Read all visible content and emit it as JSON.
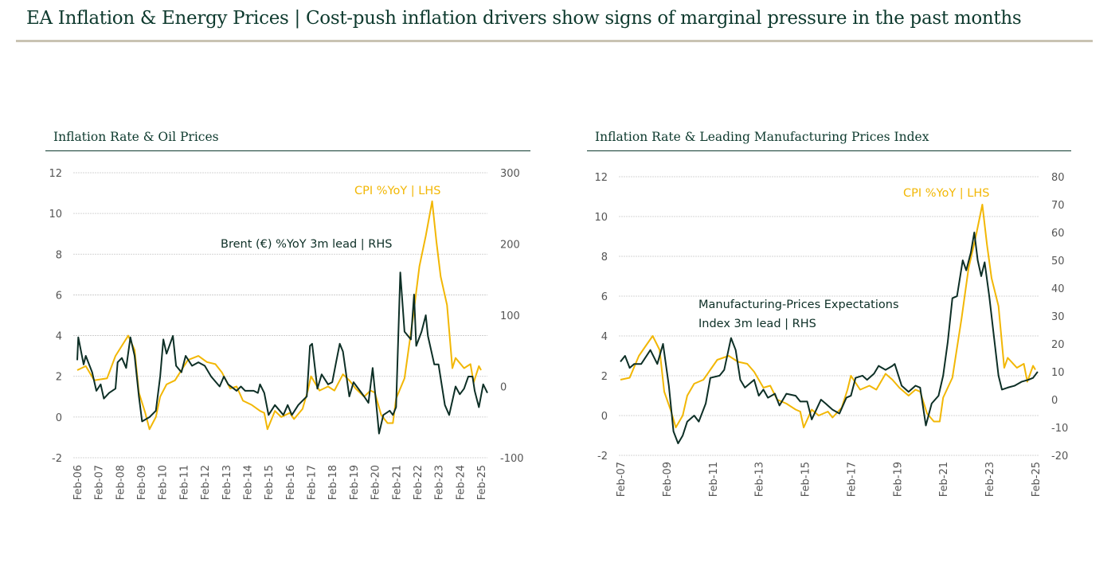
{
  "page": {
    "title": "EA Inflation & Energy Prices | Cost-push inflation drivers show signs of marginal pressure in the past months"
  },
  "colors": {
    "cpi": "#f2b705",
    "secondary": "#0d2f26",
    "grid": "#c8c8c8",
    "tick": "#555555"
  },
  "chart_data": [
    {
      "type": "line",
      "title": "Inflation Rate & Oil Prices",
      "x_tick_labels": [
        "Feb-06",
        "Feb-07",
        "Feb-08",
        "Feb-09",
        "Feb-10",
        "Feb-11",
        "Feb-12",
        "Feb-13",
        "Feb-14",
        "Feb-15",
        "Feb-16",
        "Feb-17",
        "Feb-18",
        "Feb-19",
        "Feb-20",
        "Feb-21",
        "Feb-22",
        "Feb-23",
        "Feb-24",
        "Feb-25"
      ],
      "x_tick_years": [
        2006.1,
        2007.1,
        2008.1,
        2009.1,
        2010.1,
        2011.1,
        2012.1,
        2013.1,
        2014.1,
        2015.1,
        2016.1,
        2017.1,
        2018.1,
        2019.1,
        2020.1,
        2021.1,
        2022.1,
        2023.1,
        2024.1,
        2025.1
      ],
      "y_left": {
        "range": [
          -2,
          12
        ],
        "ticks": [
          "12",
          "10",
          "8",
          "6",
          "4",
          "2",
          "0",
          "-2"
        ],
        "tick_values": [
          12,
          10,
          8,
          6,
          4,
          2,
          0,
          -2
        ]
      },
      "y_right": {
        "range": [
          -100,
          300
        ],
        "ticks": [
          "300",
          "200",
          "100",
          "0",
          "-100"
        ],
        "tick_values": [
          300,
          200,
          100,
          0,
          -100
        ]
      },
      "grid": true,
      "annotations": [
        "CPI %YoY | LHS",
        "Brent (€) %YoY 3m lead | RHS"
      ],
      "series": [
        {
          "name": "CPI %YoY | LHS",
          "axis": "left",
          "x": [
            2006.1,
            2006.5,
            2006.9,
            2007.5,
            2007.9,
            2008.2,
            2008.5,
            2008.8,
            2009.0,
            2009.3,
            2009.5,
            2009.8,
            2010.0,
            2010.3,
            2010.7,
            2011.0,
            2011.3,
            2011.8,
            2012.2,
            2012.6,
            2012.9,
            2013.3,
            2013.6,
            2013.9,
            2014.3,
            2014.7,
            2014.9,
            2015.05,
            2015.4,
            2015.7,
            2016.1,
            2016.3,
            2016.7,
            2016.95,
            2017.1,
            2017.5,
            2017.9,
            2018.2,
            2018.6,
            2018.9,
            2019.2,
            2019.6,
            2019.9,
            2020.1,
            2020.4,
            2020.7,
            2020.95,
            2021.1,
            2021.5,
            2021.9,
            2022.2,
            2022.5,
            2022.8,
            2023.0,
            2023.2,
            2023.5,
            2023.75,
            2023.9,
            2024.3,
            2024.6,
            2024.75,
            2025.0,
            2025.1
          ],
          "y": [
            2.3,
            2.5,
            1.8,
            1.9,
            3.0,
            3.5,
            4.0,
            3.3,
            1.2,
            0.2,
            -0.6,
            0.0,
            1.0,
            1.6,
            1.8,
            2.3,
            2.8,
            3.0,
            2.7,
            2.6,
            2.2,
            1.4,
            1.5,
            0.8,
            0.6,
            0.3,
            0.2,
            -0.6,
            0.3,
            0.0,
            0.2,
            -0.1,
            0.4,
            1.3,
            2.0,
            1.3,
            1.5,
            1.3,
            2.1,
            1.8,
            1.4,
            1.0,
            1.3,
            1.2,
            0.1,
            -0.3,
            -0.3,
            0.9,
            1.9,
            4.9,
            7.4,
            8.9,
            10.6,
            8.6,
            6.9,
            5.5,
            2.4,
            2.9,
            2.4,
            2.6,
            1.7,
            2.5,
            2.3
          ]
        },
        {
          "name": "Brent (€) %YoY 3m lead | RHS",
          "axis": "right",
          "x": [
            2006.1,
            2006.15,
            2006.4,
            2006.5,
            2006.8,
            2007.0,
            2007.2,
            2007.35,
            2007.6,
            2007.9,
            2008.0,
            2008.2,
            2008.4,
            2008.6,
            2008.8,
            2009.0,
            2009.15,
            2009.5,
            2009.8,
            2010.0,
            2010.15,
            2010.3,
            2010.6,
            2010.75,
            2011.0,
            2011.2,
            2011.5,
            2011.8,
            2012.1,
            2012.4,
            2012.8,
            2013.0,
            2013.2,
            2013.6,
            2013.8,
            2014.0,
            2014.4,
            2014.6,
            2014.7,
            2014.9,
            2015.1,
            2015.4,
            2015.8,
            2016.0,
            2016.2,
            2016.5,
            2016.9,
            2017.05,
            2017.15,
            2017.4,
            2017.6,
            2017.9,
            2018.1,
            2018.3,
            2018.45,
            2018.6,
            2018.9,
            2019.1,
            2019.4,
            2019.6,
            2019.8,
            2020.0,
            2020.2,
            2020.3,
            2020.5,
            2020.8,
            2020.95,
            2021.1,
            2021.3,
            2021.5,
            2021.8,
            2021.95,
            2022.05,
            2022.3,
            2022.5,
            2022.6,
            2022.9,
            2023.1,
            2023.4,
            2023.6,
            2023.9,
            2024.1,
            2024.3,
            2024.5,
            2024.7,
            2024.8,
            2025.0,
            2025.2,
            2025.4
          ],
          "y": [
            37,
            69,
            31,
            43,
            20,
            -6,
            3,
            -17,
            -9,
            -3,
            34,
            40,
            26,
            69,
            43,
            -14,
            -49,
            -43,
            -34,
            14,
            66,
            46,
            71,
            29,
            20,
            43,
            29,
            34,
            29,
            14,
            0,
            14,
            3,
            -6,
            0,
            -6,
            -6,
            -9,
            3,
            -9,
            -40,
            -26,
            -40,
            -26,
            -40,
            -26,
            -14,
            57,
            60,
            -3,
            17,
            3,
            6,
            37,
            60,
            49,
            -14,
            6,
            -6,
            -14,
            -23,
            26,
            -34,
            -66,
            -40,
            -34,
            -40,
            -29,
            160,
            77,
            66,
            129,
            57,
            77,
            100,
            71,
            31,
            31,
            -26,
            -40,
            0,
            -11,
            -3,
            14,
            14,
            -6,
            -29,
            3,
            -9
          ]
        }
      ]
    },
    {
      "type": "line",
      "title": "Inflation Rate & Leading Manufacturing Prices Index",
      "x_tick_labels": [
        "Feb-07",
        "Feb-09",
        "Feb-11",
        "Feb-13",
        "Feb-15",
        "Feb-17",
        "Feb-19",
        "Feb-21",
        "Feb-23",
        "Feb-25"
      ],
      "x_tick_years": [
        2007.1,
        2009.1,
        2011.1,
        2013.1,
        2015.1,
        2017.1,
        2019.1,
        2021.1,
        2023.1,
        2025.1
      ],
      "y_left": {
        "range": [
          -2,
          12
        ],
        "ticks": [
          "12",
          "10",
          "8",
          "6",
          "4",
          "2",
          "0",
          "-2"
        ],
        "tick_values": [
          12,
          10,
          8,
          6,
          4,
          2,
          0,
          -2
        ]
      },
      "y_right": {
        "range": [
          -20,
          80
        ],
        "ticks": [
          "80",
          "70",
          "60",
          "50",
          "40",
          "30",
          "20",
          "10",
          "0",
          "-10",
          "-20"
        ],
        "tick_values": [
          80,
          70,
          60,
          50,
          40,
          30,
          20,
          10,
          0,
          -10,
          -20
        ]
      },
      "grid": true,
      "annotations": [
        "CPI %YoY | LHS",
        "Manufacturing-Prices Expectations",
        "Index 3m lead | RHS"
      ],
      "series": [
        {
          "name": "CPI %YoY | LHS",
          "axis": "left",
          "x": [
            2007.1,
            2007.5,
            2007.9,
            2008.2,
            2008.5,
            2008.8,
            2009.0,
            2009.3,
            2009.5,
            2009.8,
            2010.0,
            2010.3,
            2010.7,
            2011.0,
            2011.3,
            2011.8,
            2012.2,
            2012.6,
            2012.9,
            2013.3,
            2013.6,
            2013.9,
            2014.3,
            2014.7,
            2014.9,
            2015.05,
            2015.4,
            2015.7,
            2016.1,
            2016.3,
            2016.7,
            2016.95,
            2017.1,
            2017.5,
            2017.9,
            2018.2,
            2018.6,
            2018.9,
            2019.2,
            2019.6,
            2019.9,
            2020.1,
            2020.4,
            2020.7,
            2020.95,
            2021.1,
            2021.5,
            2021.9,
            2022.2,
            2022.5,
            2022.8,
            2023.0,
            2023.2,
            2023.5,
            2023.75,
            2023.9,
            2024.3,
            2024.6,
            2024.75,
            2025.0,
            2025.1
          ],
          "y": [
            1.8,
            1.9,
            3.0,
            3.5,
            4.0,
            3.3,
            1.2,
            0.2,
            -0.6,
            0.0,
            1.0,
            1.6,
            1.8,
            2.3,
            2.8,
            3.0,
            2.7,
            2.6,
            2.2,
            1.4,
            1.5,
            0.8,
            0.6,
            0.3,
            0.2,
            -0.6,
            0.3,
            0.0,
            0.2,
            -0.1,
            0.4,
            1.3,
            2.0,
            1.3,
            1.5,
            1.3,
            2.1,
            1.8,
            1.4,
            1.0,
            1.3,
            1.2,
            0.1,
            -0.3,
            -0.3,
            0.9,
            1.9,
            4.9,
            7.4,
            8.9,
            10.6,
            8.6,
            6.9,
            5.5,
            2.4,
            2.9,
            2.4,
            2.6,
            1.7,
            2.5,
            2.3
          ]
        },
        {
          "name": "Manufacturing-Prices Expectations Index 3m lead | RHS",
          "axis": "right",
          "x": [
            2007.1,
            2007.3,
            2007.5,
            2007.7,
            2008.0,
            2008.4,
            2008.7,
            2008.95,
            2009.2,
            2009.4,
            2009.6,
            2009.8,
            2010.0,
            2010.3,
            2010.5,
            2010.8,
            2011.0,
            2011.4,
            2011.6,
            2011.9,
            2012.1,
            2012.3,
            2012.5,
            2012.9,
            2013.1,
            2013.3,
            2013.5,
            2013.8,
            2014.0,
            2014.3,
            2014.7,
            2014.9,
            2015.2,
            2015.4,
            2015.8,
            2016.0,
            2016.3,
            2016.6,
            2016.9,
            2017.1,
            2017.3,
            2017.6,
            2017.8,
            2018.1,
            2018.3,
            2018.6,
            2018.9,
            2019.0,
            2019.3,
            2019.6,
            2019.9,
            2020.1,
            2020.35,
            2020.6,
            2020.9,
            2021.1,
            2021.3,
            2021.5,
            2021.7,
            2021.95,
            2022.1,
            2022.3,
            2022.45,
            2022.6,
            2022.75,
            2022.9,
            2023.1,
            2023.3,
            2023.5,
            2023.65,
            2023.9,
            2024.2,
            2024.5,
            2024.8,
            2025.0,
            2025.2
          ],
          "y": [
            13.6,
            15.7,
            11.4,
            12.8,
            12.8,
            17.8,
            12.8,
            20,
            5,
            -11.4,
            -15.7,
            -12.9,
            -7.9,
            -5.7,
            -7.9,
            -1.4,
            7.8,
            8.6,
            10.7,
            22.1,
            17.8,
            7.1,
            4.3,
            7.1,
            1.4,
            3.6,
            0.7,
            2.1,
            -2.1,
            2.1,
            1.4,
            -0.7,
            -0.7,
            -7.1,
            0,
            -1.4,
            -3.6,
            -5,
            0.7,
            1.4,
            7.8,
            8.6,
            7.1,
            9.3,
            12.1,
            10.7,
            12.1,
            12.8,
            5,
            2.8,
            5,
            4.3,
            -9.3,
            -1.4,
            1.4,
            8.6,
            20.7,
            36.4,
            37.1,
            50,
            46.4,
            52.8,
            60,
            50,
            44.3,
            49.3,
            37.1,
            22.8,
            8.6,
            3.6,
            4.3,
            5,
            6.4,
            7.1,
            7.8,
            10
          ]
        }
      ]
    }
  ]
}
